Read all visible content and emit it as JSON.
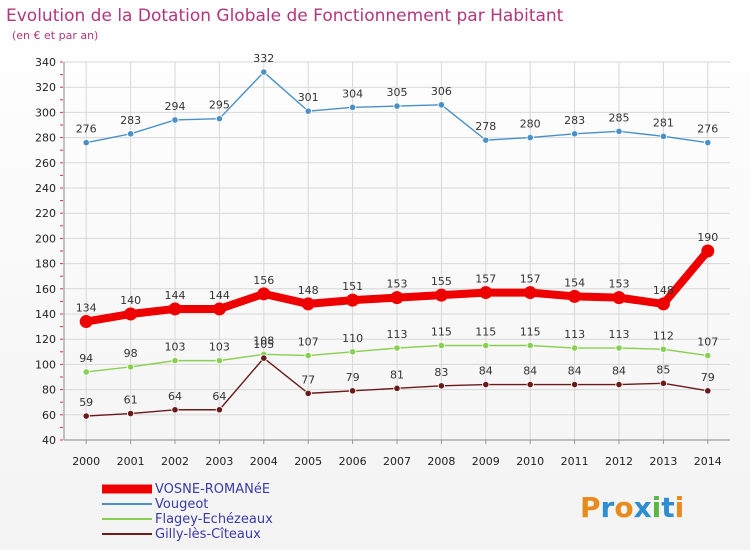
{
  "chart_data": {
    "type": "line",
    "title": "Evolution de la Dotation Globale de Fonctionnement par Habitant",
    "subtitle": "(en € et par an)",
    "xlabel": "",
    "ylabel": "",
    "x": [
      "2000",
      "2001",
      "2002",
      "2003",
      "2004",
      "2005",
      "2006",
      "2007",
      "2008",
      "2009",
      "2010",
      "2011",
      "2012",
      "2013",
      "2014"
    ],
    "ylim": [
      40,
      340
    ],
    "yticks": [
      "40",
      "60",
      "80",
      "100",
      "120",
      "140",
      "160",
      "180",
      "200",
      "220",
      "240",
      "260",
      "280",
      "300",
      "320",
      "340"
    ],
    "grid": true,
    "legend_position": "bottom-left",
    "series": [
      {
        "name": "VOSNE-ROMANéE",
        "color": "#ee0000",
        "values": [
          134,
          140,
          144,
          144,
          156,
          148,
          151,
          153,
          155,
          157,
          157,
          154,
          153,
          148,
          190
        ]
      },
      {
        "name": "Vougeot",
        "color": "#4a90c8",
        "values": [
          276,
          283,
          294,
          295,
          332,
          301,
          304,
          305,
          306,
          278,
          280,
          283,
          285,
          281,
          276
        ]
      },
      {
        "name": "Flagey-Echézeaux",
        "color": "#88d050",
        "values": [
          94,
          98,
          103,
          103,
          108,
          107,
          110,
          113,
          115,
          115,
          115,
          113,
          113,
          112,
          107
        ]
      },
      {
        "name": "Gilly-lès-Cîteaux",
        "color": "#6b1a1a",
        "values": [
          59,
          61,
          64,
          64,
          105,
          77,
          79,
          81,
          83,
          84,
          84,
          84,
          84,
          85,
          79
        ]
      }
    ],
    "labels": {
      "VOSNE-ROMANéE": [
        "134",
        "140",
        "144",
        "144",
        "156",
        "148",
        "151",
        "153",
        "155",
        "157",
        "157",
        "154",
        "153",
        "148",
        "190"
      ],
      "Vougeot": [
        "276",
        "283",
        "294",
        "295",
        "332",
        "301",
        "304",
        "305",
        "306",
        "278",
        "280",
        "283",
        "285",
        "281",
        "276"
      ],
      "Flagey-Echézeaux": [
        "94",
        "98",
        "103",
        "103",
        "108",
        "107",
        "110",
        "113",
        "115",
        "115",
        "115",
        "113",
        "113",
        "112",
        "107"
      ],
      "Gilly-lès-Cîteaux": [
        "59",
        "61",
        "64",
        "64",
        "105",
        "77",
        "79",
        "81",
        "83",
        "84",
        "84",
        "84",
        "84",
        "85",
        "79"
      ]
    }
  },
  "logo": {
    "text": "Proxiti",
    "colors": [
      "#e98a1d",
      "#2f8ed1",
      "#e98a1d",
      "#2f8ed1",
      "#5bb645",
      "#2f8ed1",
      "#e98a1d"
    ]
  }
}
